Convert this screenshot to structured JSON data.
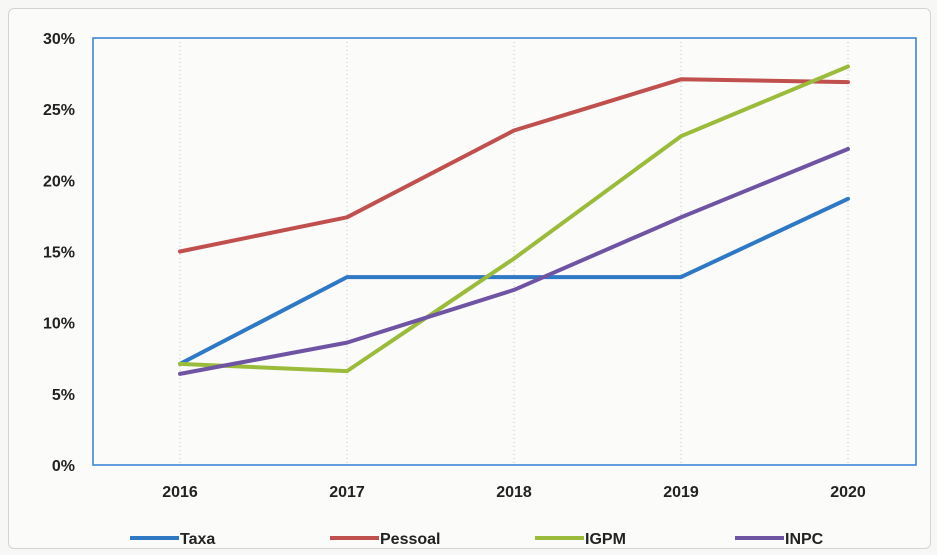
{
  "chart_data": {
    "type": "line",
    "categories": [
      "2016",
      "2017",
      "2018",
      "2019",
      "2020"
    ],
    "y_ticks": [
      "0%",
      "5%",
      "10%",
      "15%",
      "20%",
      "25%",
      "30%"
    ],
    "ylim": [
      0,
      30
    ],
    "y_unit": "%",
    "grid": "vertical dotted",
    "legend_position": "bottom",
    "series": [
      {
        "name": "Taxa",
        "color": "#2f78c4",
        "values": [
          7.1,
          13.2,
          13.2,
          13.2,
          18.7
        ]
      },
      {
        "name": "Pessoal",
        "color": "#c0504d",
        "values": [
          15.0,
          17.4,
          23.5,
          27.1,
          26.9
        ]
      },
      {
        "name": "IGPM",
        "color": "#9bbb3a",
        "values": [
          7.1,
          6.6,
          14.5,
          23.1,
          28.0
        ]
      },
      {
        "name": "INPC",
        "color": "#7054a4",
        "values": [
          6.4,
          8.6,
          12.3,
          17.4,
          22.2
        ]
      }
    ]
  }
}
